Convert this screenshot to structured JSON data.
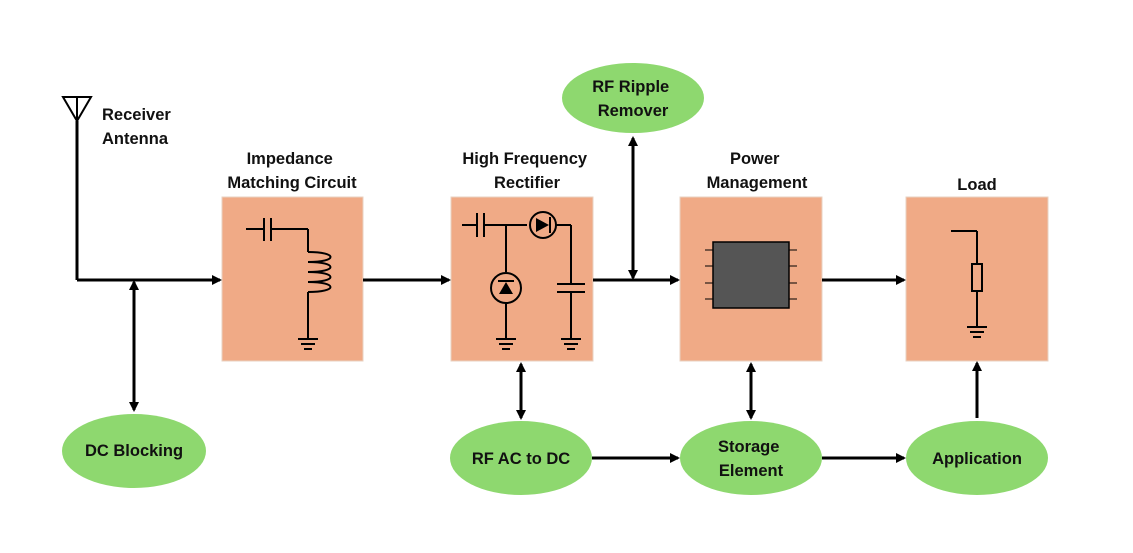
{
  "labels": {
    "receiver": [
      "Receiver",
      "Antenna"
    ],
    "impedance": [
      "Impedance",
      "Matching Circuit"
    ],
    "rectifier": [
      "High Frequency",
      "Rectifier"
    ],
    "power": [
      "Power",
      "Management"
    ],
    "load": "Load"
  },
  "nodes": {
    "rf_ripple": [
      "RF Ripple",
      "Remover"
    ],
    "dc_blocking": "DC Blocking",
    "rf_ac_dc": "RF AC to DC",
    "storage": [
      "Storage",
      "Element"
    ],
    "application": "Application"
  },
  "colors": {
    "box_fill": "#f0aa86",
    "ellipse_fill": "#8ed86f",
    "line": "#000000"
  }
}
